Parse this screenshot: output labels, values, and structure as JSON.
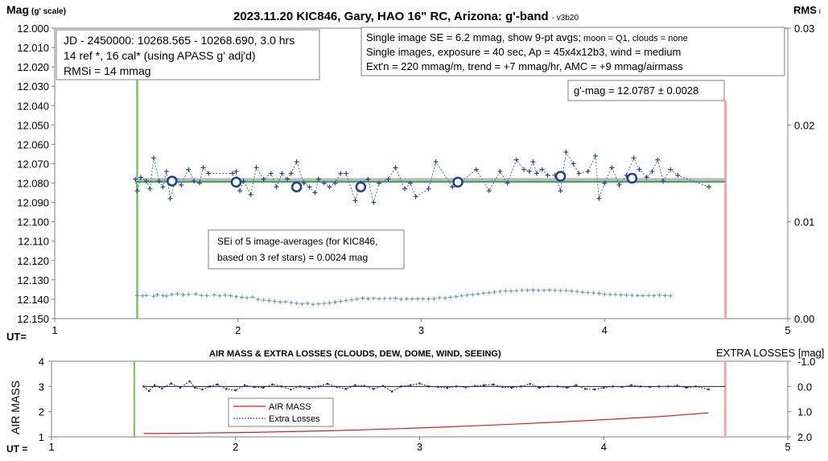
{
  "chart_data": [
    {
      "type": "scatter",
      "title": "2023.11.20 KIC846, Gary, HAO 16\" RC, Arizona: g'-band",
      "version": "- v3b20",
      "ylabel_main": "Mag",
      "ylabel_sub": "(g' scale)",
      "y2label_main": "RMS",
      "y2label_sub": "i",
      "xlabel": "UT=",
      "xlim": [
        1,
        5
      ],
      "ylim": [
        12.0,
        12.15
      ],
      "y2lim": [
        0.0,
        0.03
      ],
      "x_ticks": [
        "1",
        "2",
        "3",
        "4",
        "5"
      ],
      "y_ticks": [
        "12.000",
        "12.010",
        "12.020",
        "12.030",
        "12.040",
        "12.050",
        "12.060",
        "12.070",
        "12.080",
        "12.090",
        "12.100",
        "12.110",
        "12.120",
        "12.130",
        "12.140",
        "12.150"
      ],
      "y2_ticks": [
        "0.03",
        "0.02",
        "0.01",
        "0.00"
      ],
      "info_box_left": [
        "JD - 2450000: 10268.565 - 10268.690, 3.0 hrs",
        "14 ref *, 16 cal* (using APASS g' adj'd)",
        "RMSi = 14 mmag"
      ],
      "info_box_right": [
        {
          "main": "Single image SE = 6.2 mmag, show  9-pt avgs;",
          "small": " moon = Q1, clouds = none"
        },
        {
          "main": "Single images, exposure = 40 sec, Ap = 45x4x12b3, wind = medium",
          "small": ""
        },
        {
          "main": "Ext'n = 220 mmag/m, trend = +7 mmag/hr, AMC = +9 mmag/airmass",
          "small": ""
        }
      ],
      "gmag_label": "g'-mag = 12.0787 ± 0.0028",
      "sei_note": [
        "SEi of 5 image-averages (for KIC846,",
        "based on 3 ref stars) = 0.0024 mag"
      ],
      "mean_mag": 12.0787,
      "start_marker_x": 1.45,
      "end_marker_x": 4.66,
      "colors": {
        "single": "#2e6b9e",
        "average": "#1f3f99",
        "mean": "#2e9e4b",
        "rms": "#5a9a9a",
        "start": "#7cc64a",
        "end": "#f4a6aa"
      },
      "series": [
        {
          "name": "single images",
          "x": [
            1.44,
            1.45,
            1.47,
            1.5,
            1.52,
            1.54,
            1.57,
            1.59,
            1.61,
            1.63,
            1.66,
            1.69,
            1.73,
            1.76,
            1.79,
            1.81,
            1.84,
            1.97,
            1.99,
            2.01,
            2.03,
            2.07,
            2.1,
            2.14,
            2.18,
            2.21,
            2.24,
            2.27,
            2.29,
            2.32,
            2.36,
            2.39,
            2.42,
            2.44,
            2.47,
            2.5,
            2.53,
            2.56,
            2.59,
            2.64,
            2.67,
            2.71,
            2.74,
            2.77,
            2.82,
            2.86,
            2.91,
            2.94,
            2.97,
            3.04,
            3.08,
            3.17,
            3.22,
            3.3,
            3.37,
            3.43,
            3.47,
            3.52,
            3.56,
            3.59,
            3.61,
            3.63,
            3.66,
            3.69,
            3.73,
            3.76,
            3.79,
            3.83,
            3.86,
            3.91,
            3.95,
            3.97,
            4.0,
            4.04,
            4.08,
            4.12,
            4.16,
            4.19,
            4.23,
            4.26,
            4.29,
            4.32,
            4.36,
            4.4,
            4.57
          ],
          "y": [
            12.078,
            12.084,
            12.077,
            12.079,
            12.083,
            12.067,
            12.079,
            12.082,
            12.074,
            12.088,
            12.078,
            12.081,
            12.073,
            12.079,
            12.08,
            12.072,
            12.075,
            12.075,
            12.074,
            12.084,
            12.079,
            12.086,
            12.072,
            12.078,
            12.075,
            12.082,
            12.075,
            12.078,
            12.075,
            12.069,
            12.08,
            12.082,
            12.085,
            12.078,
            12.08,
            12.082,
            12.08,
            12.075,
            12.075,
            12.089,
            12.08,
            12.078,
            12.09,
            12.08,
            12.078,
            12.072,
            12.083,
            12.08,
            12.087,
            12.083,
            12.069,
            12.082,
            12.079,
            12.073,
            12.084,
            12.074,
            12.08,
            12.068,
            12.073,
            12.074,
            12.069,
            12.075,
            12.073,
            12.076,
            12.076,
            12.084,
            12.064,
            12.07,
            12.075,
            12.074,
            12.066,
            12.088,
            12.08,
            12.072,
            12.081,
            12.076,
            12.067,
            12.073,
            12.077,
            12.074,
            12.068,
            12.079,
            12.073,
            12.076,
            12.082
          ]
        },
        {
          "name": "9-pt averages",
          "x": [
            1.64,
            1.99,
            2.32,
            2.67,
            3.2,
            3.76,
            4.15
          ],
          "y": [
            12.079,
            12.0795,
            12.082,
            12.082,
            12.0795,
            12.0765,
            12.0775
          ]
        },
        {
          "name": "RMSi",
          "x": [
            1.45,
            1.48,
            1.5,
            1.54,
            1.56,
            1.59,
            1.61,
            1.64,
            1.67,
            1.7,
            1.73,
            1.77,
            1.8,
            1.83,
            1.87,
            1.9,
            1.93,
            1.96,
            1.99,
            2.02,
            2.05,
            2.08,
            2.11,
            2.14,
            2.17,
            2.2,
            2.23,
            2.26,
            2.29,
            2.32,
            2.35,
            2.38,
            2.41,
            2.44,
            2.47,
            2.5,
            2.53,
            2.56,
            2.59,
            2.62,
            2.65,
            2.68,
            2.71,
            2.74,
            2.77,
            2.8,
            2.83,
            2.86,
            2.89,
            2.92,
            2.95,
            2.98,
            3.01,
            3.04,
            3.07,
            3.1,
            3.13,
            3.16,
            3.19,
            3.22,
            3.25,
            3.28,
            3.31,
            3.34,
            3.37,
            3.4,
            3.43,
            3.46,
            3.49,
            3.52,
            3.55,
            3.58,
            3.61,
            3.64,
            3.67,
            3.7,
            3.73,
            3.76,
            3.79,
            3.82,
            3.85,
            3.88,
            3.91,
            3.94,
            3.97,
            4.0,
            4.03,
            4.06,
            4.09,
            4.12,
            4.15,
            4.18,
            4.21,
            4.24,
            4.27,
            4.3,
            4.33,
            4.36
          ],
          "y": [
            0.00238,
            0.00235,
            0.0024,
            0.0023,
            0.00245,
            0.00238,
            0.00233,
            0.00248,
            0.00255,
            0.00245,
            0.0025,
            0.00252,
            0.0024,
            0.00238,
            0.00244,
            0.00235,
            0.00243,
            0.00236,
            0.00228,
            0.0022,
            0.00215,
            0.00222,
            0.00198,
            0.0019,
            0.00185,
            0.00178,
            0.0017,
            0.00174,
            0.00165,
            0.00158,
            0.00152,
            0.00158,
            0.00148,
            0.00152,
            0.00156,
            0.00162,
            0.0017,
            0.00178,
            0.00186,
            0.00194,
            0.00202,
            0.00212,
            0.00205,
            0.0021,
            0.00205,
            0.00208,
            0.00208,
            0.0021,
            0.002,
            0.00205,
            0.00203,
            0.00204,
            0.00205,
            0.00204,
            0.00206,
            0.00215,
            0.00212,
            0.0022,
            0.00228,
            0.00235,
            0.00242,
            0.00248,
            0.00255,
            0.00262,
            0.00268,
            0.00275,
            0.0028,
            0.00286,
            0.00285,
            0.00288,
            0.00292,
            0.00292,
            0.00295,
            0.00292,
            0.00292,
            0.00295,
            0.00292,
            0.0029,
            0.0029,
            0.00285,
            0.0028,
            0.00272,
            0.00268,
            0.00265,
            0.00262,
            0.0025,
            0.00248,
            0.00248,
            0.00245,
            0.00242,
            0.0024,
            0.00238,
            0.00236,
            0.0024,
            0.00238,
            0.00242,
            0.00238,
            0.00235
          ]
        }
      ]
    },
    {
      "type": "line",
      "title": "AIR MASS & EXTRA LOSSES (CLOUDS, DEW, DOME, WIND, SEEING)",
      "ylabel": "AIR MASS",
      "y2label": "EXTRA LOSSES [mag]",
      "xlabel": "UT =",
      "xlim": [
        1,
        5
      ],
      "ylim": [
        1,
        4
      ],
      "y2lim": [
        -1.0,
        2.0
      ],
      "x_ticks": [
        "1",
        "2",
        "3",
        "4",
        "5"
      ],
      "y_ticks": [
        "1",
        "2",
        "3",
        "4"
      ],
      "y2_ticks": [
        "-1.0",
        "0.0",
        "1.0",
        "2.0"
      ],
      "legend_position": "bottom-left inside plot",
      "colors": {
        "airmass": "#d62020",
        "extra": "#1f3a8a"
      },
      "series": [
        {
          "name": "AIR MASS",
          "x": [
            1.5,
            1.7,
            1.9,
            2.1,
            2.3,
            2.5,
            2.7,
            2.9,
            3.1,
            3.3,
            3.5,
            3.7,
            3.9,
            4.1,
            4.3,
            4.57
          ],
          "y": [
            1.13,
            1.14,
            1.16,
            1.18,
            1.21,
            1.24,
            1.28,
            1.33,
            1.38,
            1.44,
            1.5,
            1.57,
            1.64,
            1.72,
            1.8,
            1.95
          ]
        },
        {
          "name": "Extra Losses",
          "x": [
            1.5,
            1.53,
            1.56,
            1.6,
            1.65,
            1.7,
            1.75,
            1.78,
            1.82,
            1.86,
            1.9,
            1.95,
            2.0,
            2.05,
            2.1,
            2.15,
            2.2,
            2.25,
            2.3,
            2.35,
            2.4,
            2.45,
            2.5,
            2.55,
            2.6,
            2.65,
            2.7,
            2.75,
            2.8,
            2.85,
            2.9,
            2.95,
            3.0,
            3.05,
            3.1,
            3.15,
            3.2,
            3.25,
            3.3,
            3.35,
            3.4,
            3.45,
            3.5,
            3.55,
            3.6,
            3.65,
            3.7,
            3.75,
            3.8,
            3.85,
            3.9,
            3.95,
            4.0,
            4.05,
            4.1,
            4.15,
            4.2,
            4.25,
            4.3,
            4.35,
            4.4,
            4.45,
            4.5,
            4.57
          ],
          "y": [
            0.0,
            0.18,
            -0.05,
            0.08,
            -0.12,
            0.05,
            -0.2,
            0.05,
            0.12,
            0.0,
            -0.08,
            0.1,
            0.15,
            -0.05,
            0.02,
            0.05,
            -0.08,
            0.0,
            0.12,
            0.0,
            0.08,
            0.0,
            -0.1,
            0.02,
            0.1,
            -0.05,
            -0.02,
            0.1,
            -0.02,
            0.2,
            0.0,
            -0.05,
            -0.12,
            0.0,
            0.02,
            0.06,
            0.0,
            0.03,
            -0.02,
            -0.05,
            -0.08,
            0.02,
            0.05,
            0.0,
            -0.1,
            0.05,
            0.0,
            0.0,
            0.05,
            -0.05,
            0.1,
            0.12,
            0.05,
            0.0,
            0.02,
            -0.05,
            0.0,
            0.02,
            0.0,
            0.0,
            -0.03,
            0.05,
            0.0,
            0.12
          ]
        }
      ],
      "start_marker_x": 1.45,
      "end_marker_x": 4.66
    }
  ]
}
